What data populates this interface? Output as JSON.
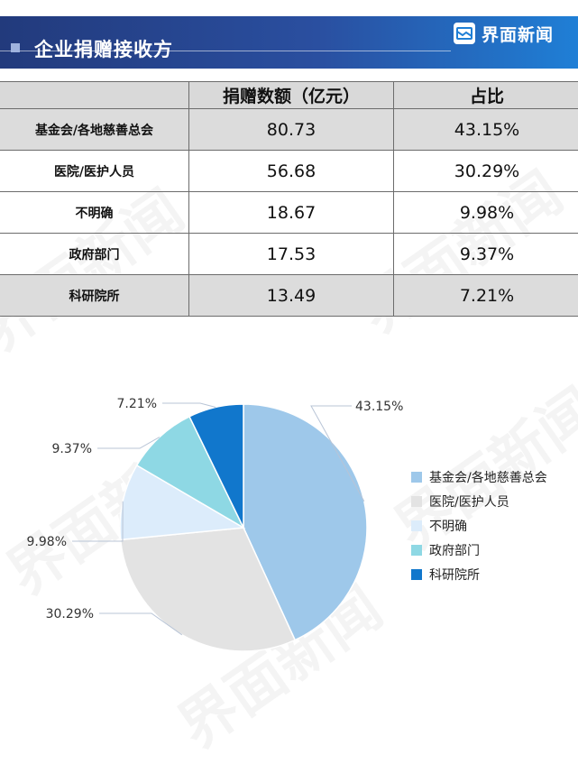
{
  "header": {
    "title": "企业捐赠接收方",
    "brand": "界面新闻",
    "brand_icon": "jiemian-logo-icon"
  },
  "table": {
    "headers": [
      "",
      "捐赠数额（亿元）",
      "占比"
    ],
    "rows": [
      [
        "基金会/各地慈善总会",
        "80.73",
        "43.15%"
      ],
      [
        "医院/医护人员",
        "56.68",
        "30.29%"
      ],
      [
        "不明确",
        "18.67",
        "9.98%"
      ],
      [
        "政府部门",
        "17.53",
        "9.37%"
      ],
      [
        "科研院所",
        "13.49",
        "7.21%"
      ]
    ]
  },
  "chart_data": {
    "type": "pie",
    "categories": [
      "基金会/各地慈善总会",
      "医院/医护人员",
      "不明确",
      "政府部门",
      "科研院所"
    ],
    "values": [
      43.15,
      30.29,
      9.98,
      9.37,
      7.21
    ],
    "labels": [
      "43.15%",
      "30.29%",
      "9.98%",
      "9.37%",
      "7.21%"
    ],
    "colors": [
      "#9ec8ea",
      "#e3e3e3",
      "#dcecfb",
      "#8ed8e4",
      "#1177cc"
    ],
    "legend_position": "right",
    "start_angle_deg": 0,
    "direction": "clockwise"
  },
  "watermark": "界面新闻",
  "colors": {
    "banner_start": "#223a7c",
    "banner_end": "#1f7fd6",
    "table_header_bg": "#d9d9d9",
    "table_shade_bg": "#dcdcdc"
  }
}
